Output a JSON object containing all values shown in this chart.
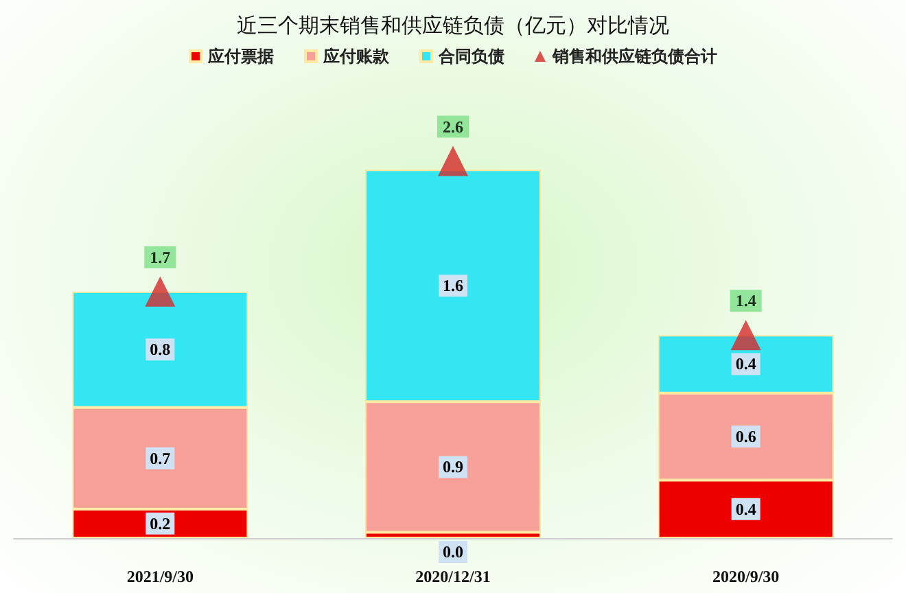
{
  "chart_data": {
    "type": "bar",
    "title": "近三个期末销售和供应链负债（亿元）对比情况",
    "categories": [
      "2021/9/30",
      "2020/12/31",
      "2020/9/30"
    ],
    "stacked": true,
    "legend": "top",
    "series": [
      {
        "name": "应付票据",
        "color": "#ee0000",
        "values": [
          0.2,
          0.04,
          0.4
        ],
        "value_labels": [
          "0.2",
          "0.0",
          "0.4"
        ]
      },
      {
        "name": "应付账款",
        "color": "#f7a09a",
        "values": [
          0.7,
          0.9,
          0.6
        ],
        "value_labels": [
          "0.7",
          "0.9",
          "0.6"
        ]
      },
      {
        "name": "合同负债",
        "color": "#33e6f2",
        "values": [
          0.8,
          1.6,
          0.4
        ],
        "value_labels": [
          "0.8",
          "1.6",
          "0.4"
        ]
      },
      {
        "name": "销售和供应链负债合计",
        "type": "scatter",
        "marker": "triangle",
        "color": "#d42a2a",
        "values": [
          1.7,
          2.6,
          1.4
        ],
        "value_labels": [
          "1.7",
          "2.6",
          "1.4"
        ]
      }
    ]
  }
}
